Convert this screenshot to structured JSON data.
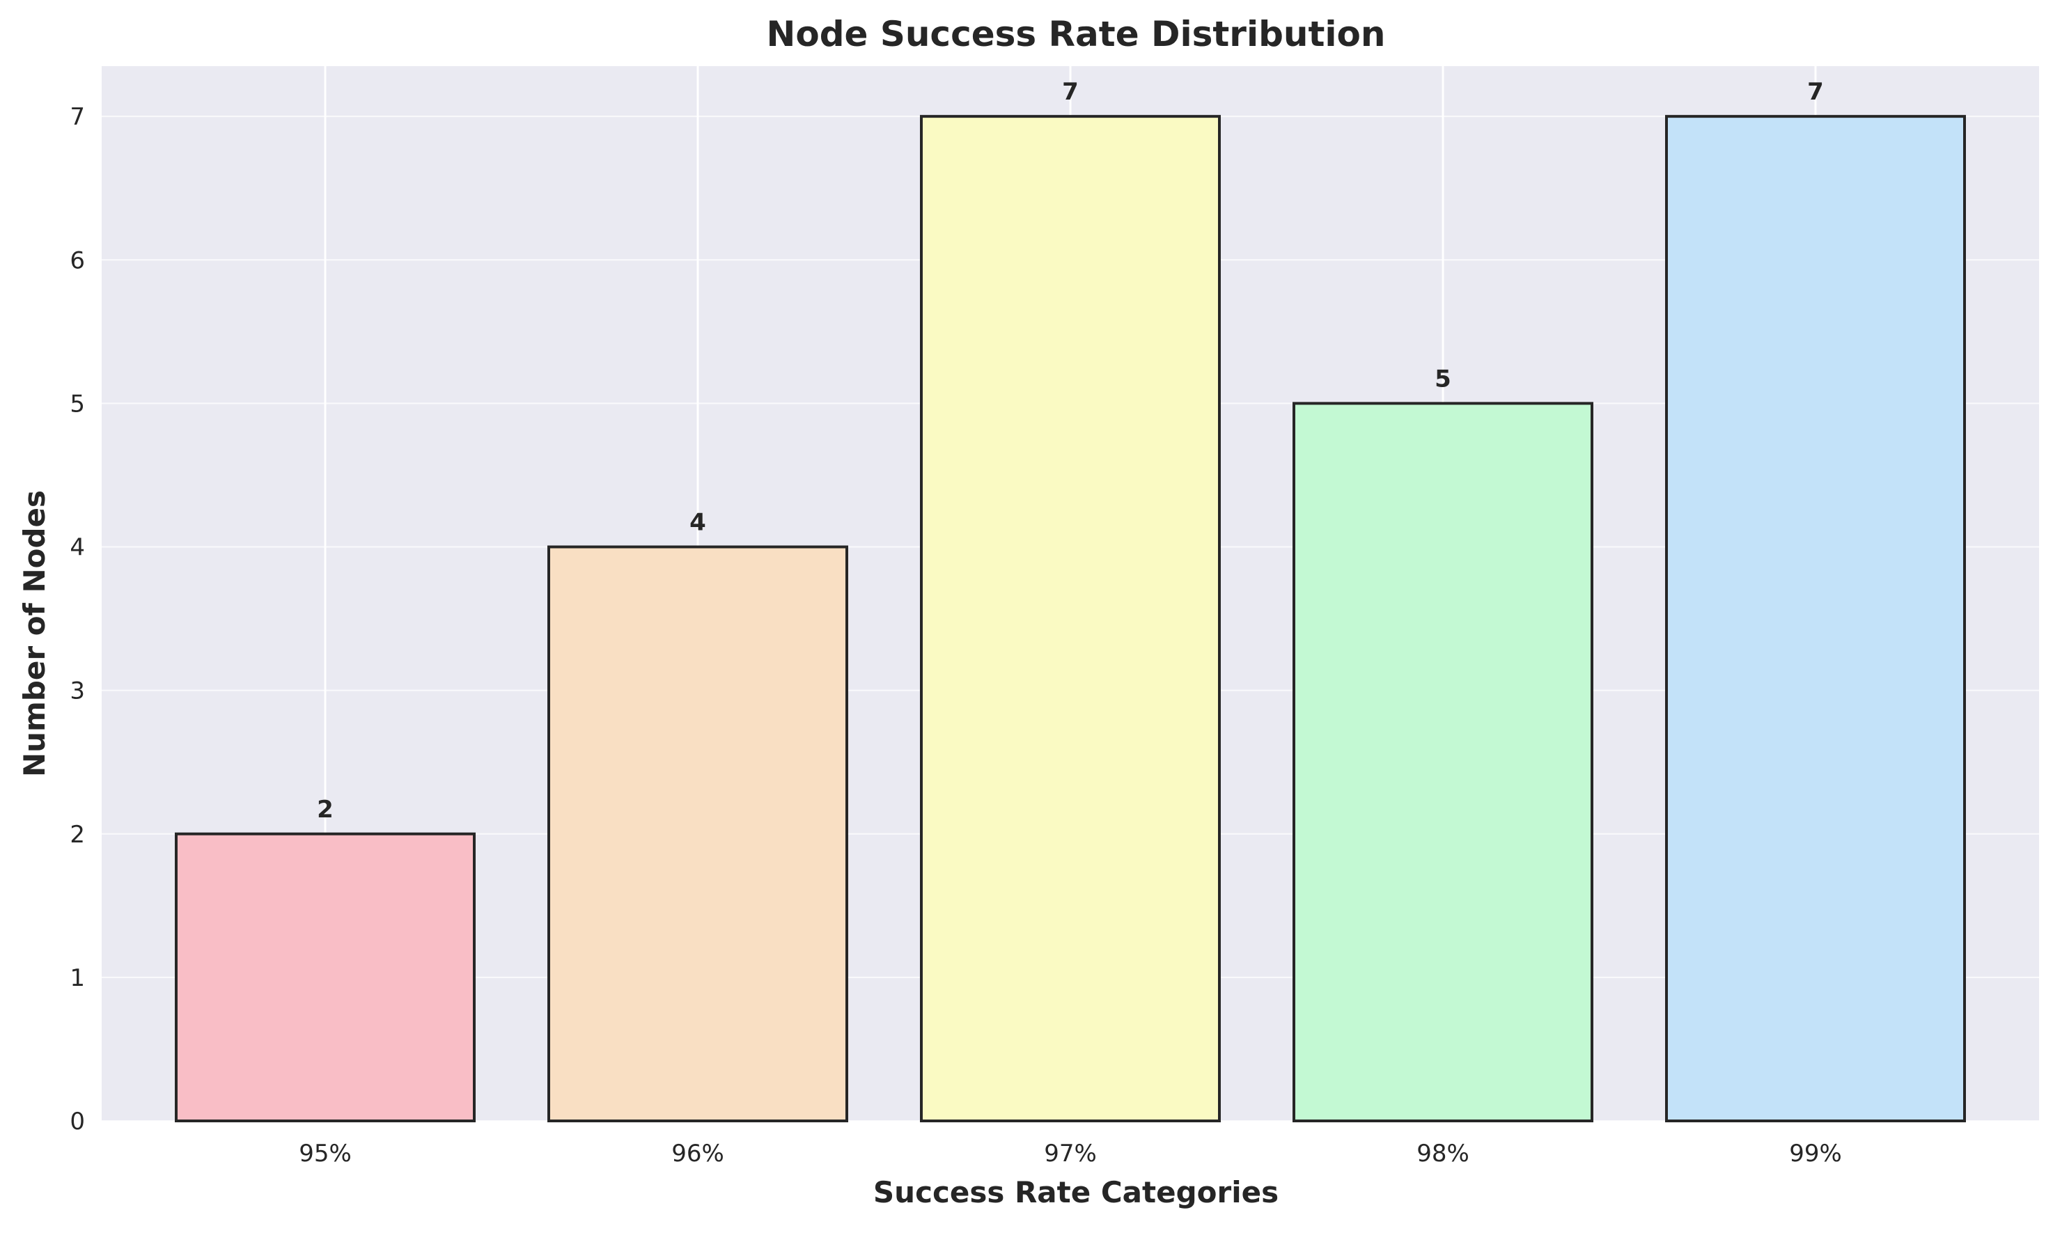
{
  "chart_data": {
    "type": "bar",
    "title": "Node Success Rate Distribution",
    "xlabel": "Success Rate Categories",
    "ylabel": "Number of Nodes",
    "categories": [
      "95%",
      "96%",
      "97%",
      "98%",
      "99%"
    ],
    "values": [
      2,
      4,
      7,
      5,
      7
    ],
    "value_labels": [
      "2",
      "4",
      "7",
      "5",
      "7"
    ],
    "ylim": [
      0,
      7.35
    ],
    "yticks": [
      0,
      1,
      2,
      3,
      4,
      5,
      6,
      7
    ],
    "ytick_labels": [
      "0",
      "1",
      "2",
      "3",
      "4",
      "5",
      "6",
      "7"
    ],
    "grid": true,
    "bar_colors": [
      "#F9BEC6",
      "#F9DFC3",
      "#FAFAC3",
      "#C3F9D3",
      "#C3E2F9"
    ],
    "bar_edge_color": "#262626",
    "background_color": "#EAEAF2",
    "grid_color": "#FFFFFF"
  }
}
